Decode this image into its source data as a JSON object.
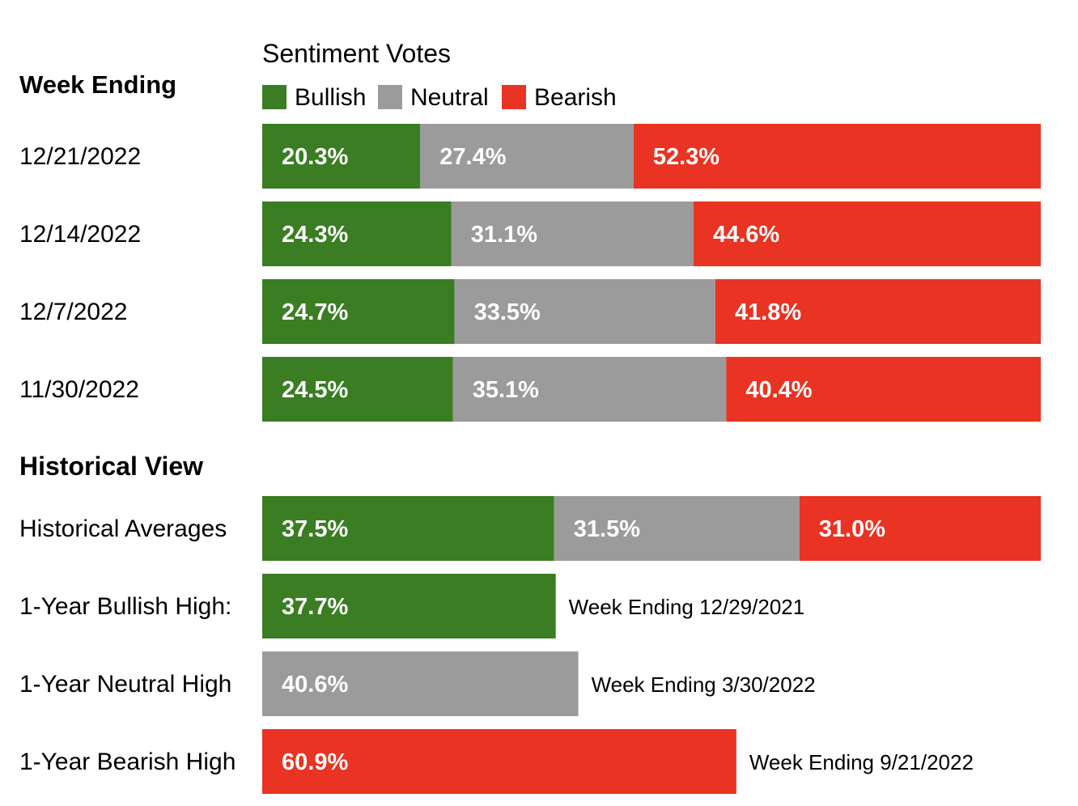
{
  "chart_data": {
    "type": "bar",
    "stacked": true,
    "orientation": "horizontal",
    "title": "Sentiment Votes",
    "legend": {
      "placement": "top",
      "entries": [
        {
          "name": "Bullish",
          "color": "#3a7d23"
        },
        {
          "name": "Neutral",
          "color": "#9b9b9b"
        },
        {
          "name": "Bearish",
          "color": "#e93323"
        }
      ]
    },
    "weekly": {
      "heading": "Week Ending",
      "rows": [
        {
          "label": "12/21/2022",
          "values": [
            20.3,
            27.4,
            52.3
          ],
          "value_labels": [
            "20.3%",
            "27.4%",
            "52.3%"
          ]
        },
        {
          "label": "12/14/2022",
          "values": [
            24.3,
            31.1,
            44.6
          ],
          "value_labels": [
            "24.3%",
            "31.1%",
            "44.6%"
          ]
        },
        {
          "label": "12/7/2022",
          "values": [
            24.7,
            33.5,
            41.8
          ],
          "value_labels": [
            "24.7%",
            "33.5%",
            "41.8%"
          ]
        },
        {
          "label": "11/30/2022",
          "values": [
            24.5,
            35.1,
            40.4
          ],
          "value_labels": [
            "24.5%",
            "35.1%",
            "40.4%"
          ]
        }
      ]
    },
    "historical": {
      "heading": "Historical View",
      "averages": {
        "label": "Historical Averages",
        "values": [
          37.5,
          31.5,
          31.0
        ],
        "value_labels": [
          "37.5%",
          "31.5%",
          "31.0%"
        ]
      },
      "highs": [
        {
          "label": "1-Year Bullish High:",
          "series": 0,
          "value": 37.7,
          "value_label": "37.7%",
          "note": "Week Ending 12/29/2021"
        },
        {
          "label": "1-Year Neutral High",
          "series": 1,
          "value": 40.6,
          "value_label": "40.6%",
          "note": "Week Ending 3/30/2022"
        },
        {
          "label": "1-Year Bearish High",
          "series": 2,
          "value": 60.9,
          "value_label": "60.9%",
          "note": "Week Ending 9/21/2022"
        }
      ]
    },
    "xlim": [
      0,
      100
    ],
    "grid": false
  }
}
